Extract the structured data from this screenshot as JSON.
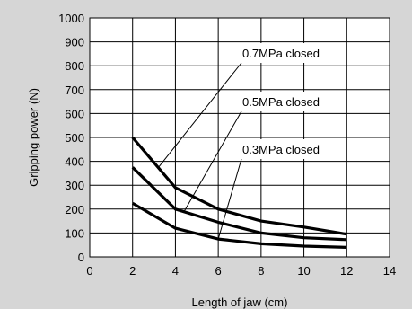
{
  "chart_data": {
    "type": "line",
    "title": "",
    "xlabel": "Length of jaw (cm)",
    "ylabel": "Gripping power (N)",
    "xlim": [
      0,
      14
    ],
    "ylim": [
      0,
      1000
    ],
    "x_ticks": [
      "0",
      "2",
      "4",
      "6",
      "8",
      "10",
      "12",
      "14"
    ],
    "y_ticks": [
      "0",
      "100",
      "200",
      "300",
      "400",
      "500",
      "600",
      "700",
      "800",
      "900",
      "1000"
    ],
    "grid": true,
    "legend": "none",
    "x": [
      2,
      4,
      6,
      8,
      10,
      12
    ],
    "series": [
      {
        "name": "0.7MPa closed",
        "values": [
          500,
          290,
          200,
          150,
          125,
          95
        ]
      },
      {
        "name": "0.5MPa closed",
        "values": [
          375,
          200,
          145,
          100,
          80,
          72
        ]
      },
      {
        "name": "0.3MPa closed",
        "values": [
          225,
          120,
          75,
          55,
          45,
          40
        ]
      }
    ],
    "annotations": [
      {
        "text": "0.7MPa closed",
        "series": 0,
        "point_x": 3.2
      },
      {
        "text": "0.5MPa closed",
        "series": 1,
        "point_x": 4.4
      },
      {
        "text": "0.3MPa closed",
        "series": 2,
        "point_x": 6.0
      }
    ],
    "line_color": "#000000",
    "grid_color": "#000000",
    "plot_background": "#ffffff",
    "figure_background": "#d6d6d6"
  }
}
